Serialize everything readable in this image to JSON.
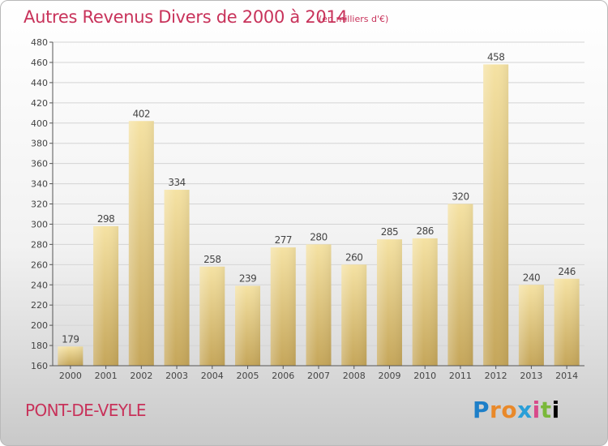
{
  "header": {
    "title": "Autres Revenus Divers de 2000 à 2014",
    "unit": "(en milliers d'€)"
  },
  "footer": {
    "town": "PONT-DE-VEYLE",
    "logo": "Proxiti"
  },
  "colors": {
    "title": "#c8325a",
    "bar_light": "#f4de9a",
    "bar_dark": "#c8a95c",
    "grid": "#d4d4d4"
  },
  "chart_data": {
    "type": "bar",
    "title": "Autres Revenus Divers de 2000 à 2014",
    "xlabel": "",
    "ylabel": "",
    "categories": [
      "2000",
      "2001",
      "2002",
      "2003",
      "2004",
      "2005",
      "2006",
      "2007",
      "2008",
      "2009",
      "2010",
      "2011",
      "2012",
      "2013",
      "2014"
    ],
    "values": [
      179,
      298,
      402,
      334,
      258,
      239,
      277,
      280,
      260,
      285,
      286,
      320,
      458,
      240,
      246
    ],
    "ylim": [
      160,
      480
    ],
    "yticks": [
      160,
      180,
      200,
      220,
      240,
      260,
      280,
      300,
      320,
      340,
      360,
      380,
      400,
      420,
      440,
      460,
      480
    ],
    "grid": true,
    "legend": "none"
  }
}
